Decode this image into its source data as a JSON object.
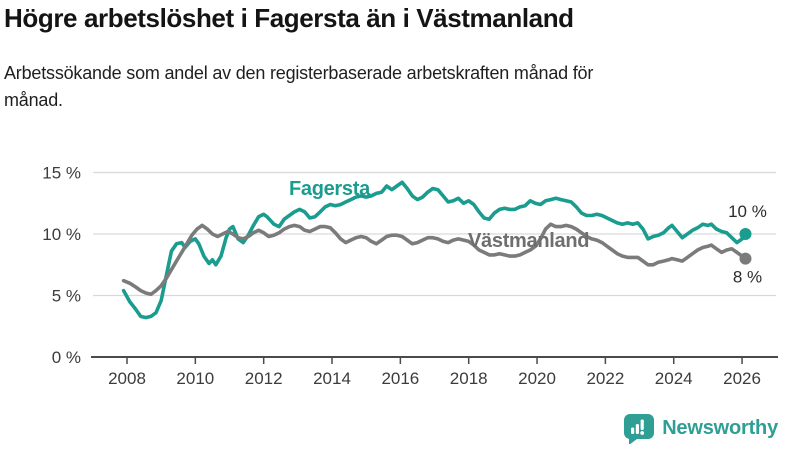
{
  "header": {
    "title": "Högre arbetslöshet i Fagersta än i Västmanland",
    "subtitle": "Arbetssökande som andel av den registerbaserade arbetskraften månad för månad."
  },
  "chart_data": {
    "type": "line",
    "xlabel": "",
    "ylabel": "",
    "ylim": [
      0,
      15.5
    ],
    "xlim": [
      2007.8,
      2026.6
    ],
    "grid": "horizontal",
    "yticks": [
      0,
      5,
      10,
      15
    ],
    "ytick_suffix": " %",
    "xticks": [
      2008,
      2010,
      2012,
      2014,
      2016,
      2018,
      2020,
      2022,
      2024,
      2026
    ],
    "legend_position": "inline-labels",
    "series": [
      {
        "name": "Fagersta",
        "color": "#1a9c8e",
        "label_color": "#1a9c8e",
        "label_pos": {
          "x": 2012.74,
          "y": 13.17
        },
        "end_label": "10 %",
        "end_label_dy": -17,
        "points": [
          [
            2007.9,
            5.4
          ],
          [
            2008.08,
            4.5
          ],
          [
            2008.25,
            3.9
          ],
          [
            2008.4,
            3.3
          ],
          [
            2008.55,
            3.2
          ],
          [
            2008.7,
            3.3
          ],
          [
            2008.85,
            3.6
          ],
          [
            2009.0,
            4.6
          ],
          [
            2009.15,
            6.6
          ],
          [
            2009.3,
            8.6
          ],
          [
            2009.45,
            9.2
          ],
          [
            2009.6,
            9.3
          ],
          [
            2009.7,
            8.9
          ],
          [
            2009.85,
            9.4
          ],
          [
            2010.0,
            9.6
          ],
          [
            2010.1,
            9.2
          ],
          [
            2010.25,
            8.2
          ],
          [
            2010.4,
            7.6
          ],
          [
            2010.5,
            7.9
          ],
          [
            2010.6,
            7.5
          ],
          [
            2010.75,
            8.2
          ],
          [
            2010.9,
            9.7
          ],
          [
            2011.0,
            10.4
          ],
          [
            2011.1,
            10.6
          ],
          [
            2011.25,
            9.6
          ],
          [
            2011.4,
            9.3
          ],
          [
            2011.55,
            9.9
          ],
          [
            2011.7,
            10.7
          ],
          [
            2011.85,
            11.4
          ],
          [
            2012.0,
            11.6
          ],
          [
            2012.1,
            11.4
          ],
          [
            2012.3,
            10.8
          ],
          [
            2012.45,
            10.6
          ],
          [
            2012.6,
            11.2
          ],
          [
            2012.75,
            11.5
          ],
          [
            2012.9,
            11.8
          ],
          [
            2013.05,
            12.0
          ],
          [
            2013.2,
            11.8
          ],
          [
            2013.35,
            11.3
          ],
          [
            2013.5,
            11.4
          ],
          [
            2013.65,
            11.8
          ],
          [
            2013.8,
            12.2
          ],
          [
            2013.95,
            12.4
          ],
          [
            2014.1,
            12.3
          ],
          [
            2014.25,
            12.4
          ],
          [
            2014.4,
            12.6
          ],
          [
            2014.55,
            12.8
          ],
          [
            2014.7,
            13.0
          ],
          [
            2014.85,
            13.1
          ],
          [
            2015.0,
            13.0
          ],
          [
            2015.15,
            13.1
          ],
          [
            2015.3,
            13.3
          ],
          [
            2015.45,
            13.4
          ],
          [
            2015.6,
            13.9
          ],
          [
            2015.75,
            13.6
          ],
          [
            2015.9,
            13.9
          ],
          [
            2016.05,
            14.2
          ],
          [
            2016.2,
            13.7
          ],
          [
            2016.35,
            13.1
          ],
          [
            2016.5,
            12.8
          ],
          [
            2016.65,
            13.0
          ],
          [
            2016.8,
            13.4
          ],
          [
            2016.95,
            13.7
          ],
          [
            2017.1,
            13.6
          ],
          [
            2017.25,
            13.1
          ],
          [
            2017.4,
            12.6
          ],
          [
            2017.55,
            12.7
          ],
          [
            2017.7,
            12.9
          ],
          [
            2017.85,
            12.5
          ],
          [
            2018.0,
            12.7
          ],
          [
            2018.15,
            12.4
          ],
          [
            2018.3,
            11.8
          ],
          [
            2018.45,
            11.3
          ],
          [
            2018.6,
            11.2
          ],
          [
            2018.75,
            11.7
          ],
          [
            2018.9,
            12.0
          ],
          [
            2019.05,
            12.1
          ],
          [
            2019.2,
            12.0
          ],
          [
            2019.35,
            12.0
          ],
          [
            2019.5,
            12.2
          ],
          [
            2019.65,
            12.3
          ],
          [
            2019.8,
            12.7
          ],
          [
            2019.95,
            12.5
          ],
          [
            2020.1,
            12.4
          ],
          [
            2020.25,
            12.7
          ],
          [
            2020.4,
            12.8
          ],
          [
            2020.55,
            12.9
          ],
          [
            2020.7,
            12.8
          ],
          [
            2020.85,
            12.7
          ],
          [
            2021.0,
            12.6
          ],
          [
            2021.15,
            12.2
          ],
          [
            2021.3,
            11.7
          ],
          [
            2021.45,
            11.5
          ],
          [
            2021.6,
            11.5
          ],
          [
            2021.75,
            11.6
          ],
          [
            2021.9,
            11.5
          ],
          [
            2022.05,
            11.3
          ],
          [
            2022.2,
            11.1
          ],
          [
            2022.35,
            10.9
          ],
          [
            2022.5,
            10.8
          ],
          [
            2022.65,
            10.9
          ],
          [
            2022.8,
            10.8
          ],
          [
            2022.95,
            10.9
          ],
          [
            2023.1,
            10.4
          ],
          [
            2023.25,
            9.6
          ],
          [
            2023.4,
            9.8
          ],
          [
            2023.55,
            9.9
          ],
          [
            2023.7,
            10.1
          ],
          [
            2023.85,
            10.5
          ],
          [
            2023.95,
            10.7
          ],
          [
            2024.1,
            10.2
          ],
          [
            2024.25,
            9.7
          ],
          [
            2024.4,
            10.0
          ],
          [
            2024.55,
            10.3
          ],
          [
            2024.7,
            10.5
          ],
          [
            2024.85,
            10.8
          ],
          [
            2025.0,
            10.7
          ],
          [
            2025.1,
            10.8
          ],
          [
            2025.25,
            10.4
          ],
          [
            2025.4,
            10.2
          ],
          [
            2025.55,
            10.1
          ],
          [
            2025.7,
            9.7
          ],
          [
            2025.85,
            9.3
          ],
          [
            2026.0,
            9.6
          ],
          [
            2026.1,
            10.0
          ]
        ]
      },
      {
        "name": "Västmanland",
        "color": "#7b7b7b",
        "label_color": "#6e6e6e",
        "label_pos": {
          "x": 2017.98,
          "y": 8.94
        },
        "end_label": "8 %",
        "end_label_dy": 24,
        "points": [
          [
            2007.9,
            6.2
          ],
          [
            2008.08,
            6.0
          ],
          [
            2008.25,
            5.7
          ],
          [
            2008.4,
            5.4
          ],
          [
            2008.55,
            5.2
          ],
          [
            2008.7,
            5.1
          ],
          [
            2008.85,
            5.4
          ],
          [
            2009.0,
            5.8
          ],
          [
            2009.15,
            6.4
          ],
          [
            2009.3,
            7.1
          ],
          [
            2009.45,
            7.8
          ],
          [
            2009.6,
            8.5
          ],
          [
            2009.75,
            9.2
          ],
          [
            2009.9,
            9.9
          ],
          [
            2010.05,
            10.4
          ],
          [
            2010.2,
            10.7
          ],
          [
            2010.35,
            10.4
          ],
          [
            2010.5,
            10.0
          ],
          [
            2010.65,
            9.8
          ],
          [
            2010.8,
            10.0
          ],
          [
            2010.95,
            10.2
          ],
          [
            2011.1,
            10.0
          ],
          [
            2011.25,
            9.7
          ],
          [
            2011.4,
            9.6
          ],
          [
            2011.55,
            9.8
          ],
          [
            2011.7,
            10.1
          ],
          [
            2011.85,
            10.3
          ],
          [
            2012.0,
            10.1
          ],
          [
            2012.15,
            9.8
          ],
          [
            2012.3,
            9.9
          ],
          [
            2012.45,
            10.1
          ],
          [
            2012.6,
            10.4
          ],
          [
            2012.75,
            10.6
          ],
          [
            2012.9,
            10.7
          ],
          [
            2013.05,
            10.6
          ],
          [
            2013.2,
            10.3
          ],
          [
            2013.35,
            10.2
          ],
          [
            2013.5,
            10.4
          ],
          [
            2013.65,
            10.6
          ],
          [
            2013.8,
            10.6
          ],
          [
            2013.95,
            10.5
          ],
          [
            2014.1,
            10.1
          ],
          [
            2014.25,
            9.6
          ],
          [
            2014.4,
            9.3
          ],
          [
            2014.55,
            9.5
          ],
          [
            2014.7,
            9.7
          ],
          [
            2014.85,
            9.8
          ],
          [
            2015.0,
            9.7
          ],
          [
            2015.15,
            9.4
          ],
          [
            2015.3,
            9.2
          ],
          [
            2015.45,
            9.5
          ],
          [
            2015.6,
            9.8
          ],
          [
            2015.75,
            9.9
          ],
          [
            2015.9,
            9.9
          ],
          [
            2016.05,
            9.8
          ],
          [
            2016.2,
            9.5
          ],
          [
            2016.35,
            9.2
          ],
          [
            2016.5,
            9.3
          ],
          [
            2016.65,
            9.5
          ],
          [
            2016.8,
            9.7
          ],
          [
            2016.95,
            9.7
          ],
          [
            2017.1,
            9.6
          ],
          [
            2017.25,
            9.4
          ],
          [
            2017.4,
            9.3
          ],
          [
            2017.55,
            9.5
          ],
          [
            2017.7,
            9.6
          ],
          [
            2017.85,
            9.5
          ],
          [
            2018.0,
            9.4
          ],
          [
            2018.15,
            9.1
          ],
          [
            2018.3,
            8.7
          ],
          [
            2018.45,
            8.5
          ],
          [
            2018.6,
            8.3
          ],
          [
            2018.75,
            8.3
          ],
          [
            2018.9,
            8.4
          ],
          [
            2019.05,
            8.3
          ],
          [
            2019.2,
            8.2
          ],
          [
            2019.35,
            8.2
          ],
          [
            2019.5,
            8.3
          ],
          [
            2019.65,
            8.5
          ],
          [
            2019.8,
            8.7
          ],
          [
            2019.95,
            9.0
          ],
          [
            2020.1,
            9.6
          ],
          [
            2020.25,
            10.4
          ],
          [
            2020.4,
            10.8
          ],
          [
            2020.55,
            10.6
          ],
          [
            2020.7,
            10.6
          ],
          [
            2020.85,
            10.7
          ],
          [
            2021.0,
            10.6
          ],
          [
            2021.15,
            10.4
          ],
          [
            2021.3,
            10.1
          ],
          [
            2021.45,
            9.8
          ],
          [
            2021.6,
            9.6
          ],
          [
            2021.75,
            9.5
          ],
          [
            2021.9,
            9.3
          ],
          [
            2022.05,
            9.0
          ],
          [
            2022.2,
            8.7
          ],
          [
            2022.35,
            8.4
          ],
          [
            2022.5,
            8.2
          ],
          [
            2022.65,
            8.1
          ],
          [
            2022.8,
            8.1
          ],
          [
            2022.95,
            8.1
          ],
          [
            2023.1,
            7.8
          ],
          [
            2023.25,
            7.5
          ],
          [
            2023.4,
            7.5
          ],
          [
            2023.55,
            7.7
          ],
          [
            2023.7,
            7.8
          ],
          [
            2023.85,
            7.9
          ],
          [
            2023.95,
            8.0
          ],
          [
            2024.1,
            7.9
          ],
          [
            2024.25,
            7.8
          ],
          [
            2024.4,
            8.1
          ],
          [
            2024.55,
            8.4
          ],
          [
            2024.7,
            8.7
          ],
          [
            2024.85,
            8.9
          ],
          [
            2025.0,
            9.0
          ],
          [
            2025.1,
            9.1
          ],
          [
            2025.25,
            8.8
          ],
          [
            2025.4,
            8.5
          ],
          [
            2025.55,
            8.7
          ],
          [
            2025.7,
            8.8
          ],
          [
            2025.85,
            8.5
          ],
          [
            2026.0,
            8.2
          ],
          [
            2026.1,
            8.0
          ]
        ]
      }
    ],
    "colors": {
      "axis": "#4a4a4a",
      "grid": "#d9d9d9",
      "tick_text": "#3c3c3c",
      "annotation_text": "#2b2b2b"
    }
  },
  "footer": {
    "brand": "Newsworthy",
    "brand_color": "#2f9e95",
    "logo_icon": "bar-chart-speech-bubble-icon"
  }
}
